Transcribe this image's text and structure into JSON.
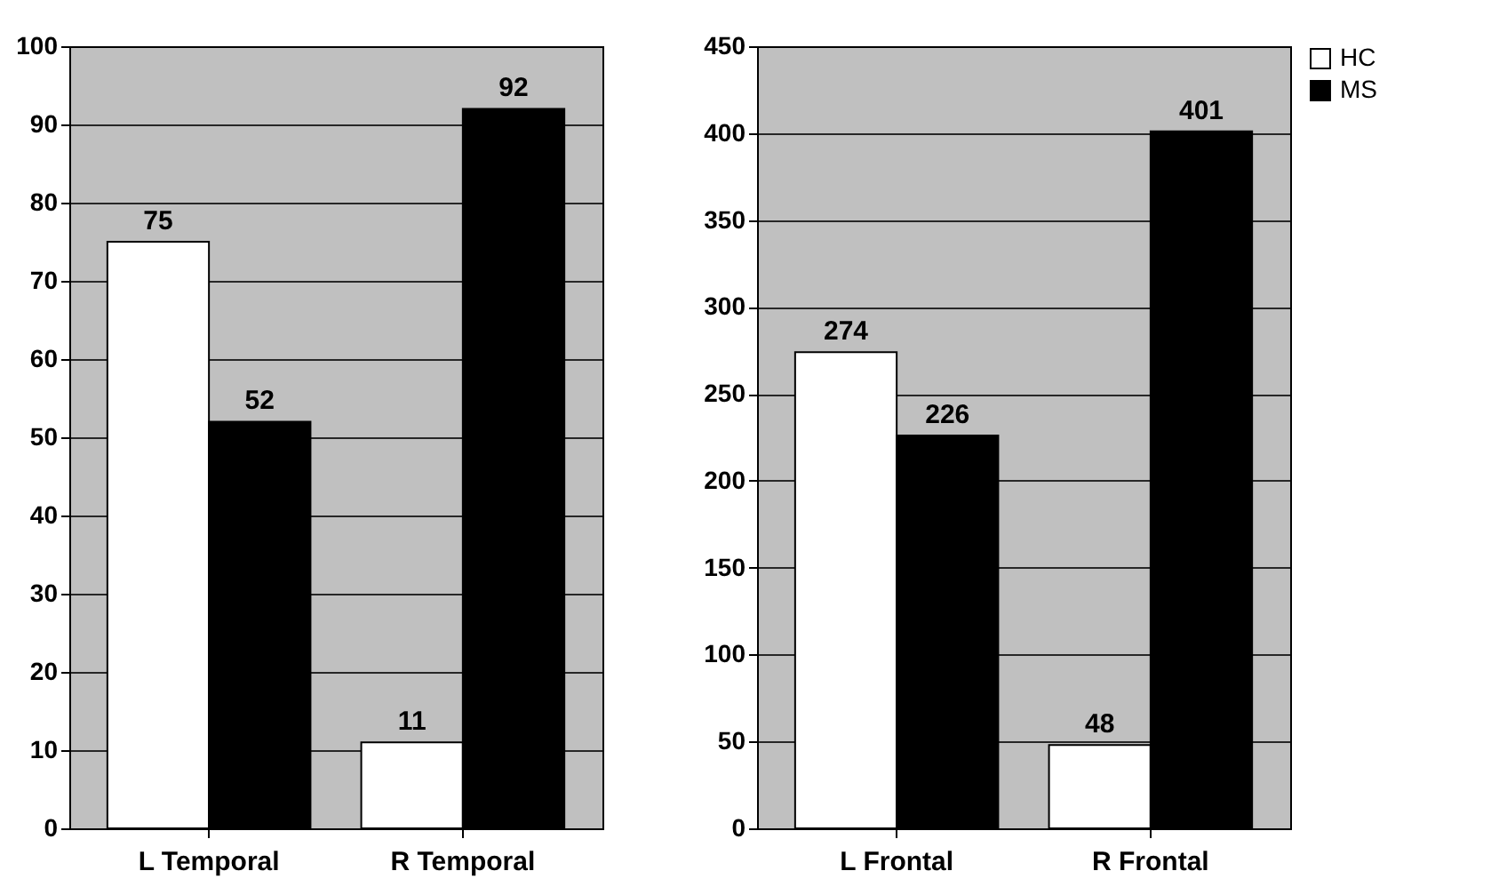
{
  "chart_data": [
    {
      "type": "bar",
      "categories": [
        "L Temporal",
        "R Temporal"
      ],
      "series": [
        {
          "color": "#ffffff",
          "values": [
            75,
            11
          ]
        },
        {
          "color": "#000000",
          "values": [
            52,
            92
          ]
        }
      ],
      "ylim": [
        0,
        100
      ],
      "yticks": [
        0,
        10,
        20,
        30,
        40,
        50,
        60,
        70,
        80,
        90,
        100
      ],
      "grid": "y",
      "data_labels": true
    },
    {
      "type": "bar",
      "categories": [
        "L Frontal",
        "R Frontal"
      ],
      "series": [
        {
          "name": "HC",
          "color": "#ffffff",
          "values": [
            274,
            48
          ]
        },
        {
          "name": "MS",
          "color": "#000000",
          "values": [
            226,
            401
          ]
        }
      ],
      "ylim": [
        0,
        450
      ],
      "yticks": [
        0,
        50,
        100,
        150,
        200,
        250,
        300,
        350,
        400,
        450
      ],
      "grid": "y",
      "data_labels": true,
      "legend": "right"
    }
  ]
}
